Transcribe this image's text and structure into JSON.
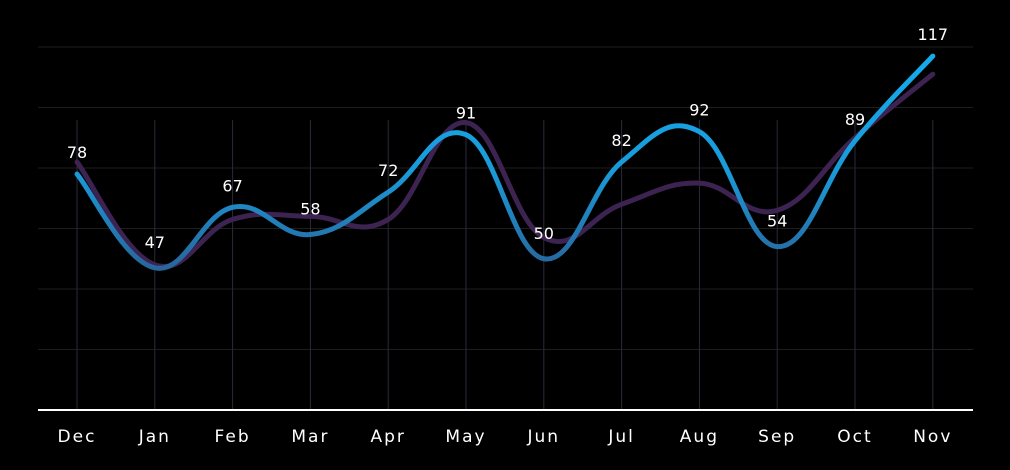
{
  "chart_data": {
    "type": "line",
    "categories": [
      "Dec",
      "Jan",
      "Feb",
      "Mar",
      "Apr",
      "May",
      "Jun",
      "Jul",
      "Aug",
      "Sep",
      "Oct",
      "Nov"
    ],
    "series": [
      {
        "values": [
          78,
          47,
          67,
          58,
          72,
          91,
          50,
          82,
          92,
          54,
          89,
          117
        ],
        "color": "#16a4e6",
        "data_labels": true
      },
      {
        "values": [
          82,
          48,
          63,
          64,
          63,
          95,
          57,
          68,
          75,
          66,
          90,
          111
        ],
        "color": "#3d2351",
        "data_labels": false
      }
    ],
    "ylim": [
      0,
      120
    ],
    "grid": true,
    "legend": "none",
    "colors": {
      "background": "#000000",
      "grid": "#1e1e1e",
      "axis": "#ffffff",
      "text": "#ffffff"
    }
  }
}
